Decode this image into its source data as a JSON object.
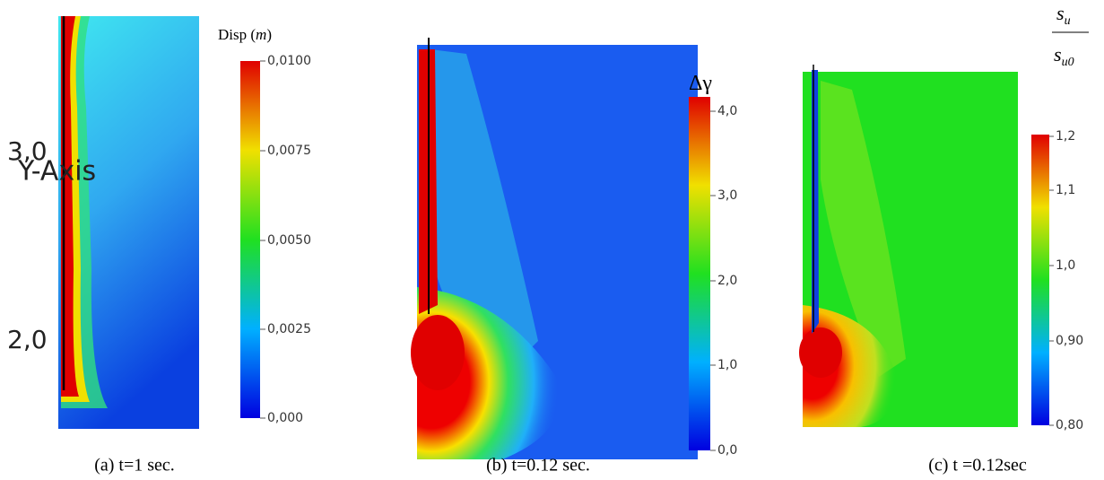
{
  "panels": [
    {
      "caption": "(a) t=1 sec.",
      "colorbar_title": {
        "text": "Disp",
        "unit": "m"
      },
      "colorbar_ticks": [
        "0,0100",
        "0,0075",
        "0,0050",
        "0,0025",
        "0,000"
      ],
      "axis_labels": [
        "3,0",
        "Y-Axis",
        "2,0"
      ]
    },
    {
      "caption": "(b) t=0.12 sec.",
      "colorbar_title": {
        "text": "Δγ"
      },
      "colorbar_ticks": [
        "4,0",
        "3,0",
        "2,0",
        "1,0",
        "0,0"
      ]
    },
    {
      "caption": "(c) t =0.12sec",
      "colorbar_title": {
        "numerator": "s",
        "numerator_sub": "u",
        "denominator": "s",
        "denominator_sub": "u0"
      },
      "colorbar_ticks": [
        "1,2",
        "1,1",
        "1,0",
        "0,90",
        "0,80"
      ]
    }
  ]
}
